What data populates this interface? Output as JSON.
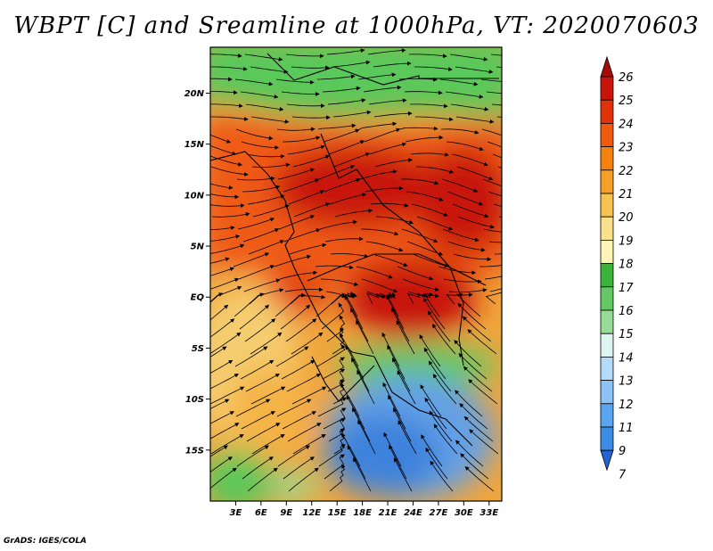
{
  "title": "WBPT [C] and Sreamline at 1000hPa, VT: 2020070603",
  "credit": "GrADS: IGES/COLA",
  "map": {
    "lon_range": [
      0,
      34.5
    ],
    "lat_range": [
      -20,
      24.5
    ],
    "lat_ticks": [
      {
        "value": 20,
        "label": "20N"
      },
      {
        "value": 15,
        "label": "15N"
      },
      {
        "value": 10,
        "label": "10N"
      },
      {
        "value": 5,
        "label": "5N"
      },
      {
        "value": 0,
        "label": "EQ"
      },
      {
        "value": -5,
        "label": "5S"
      },
      {
        "value": -10,
        "label": "10S"
      },
      {
        "value": -15,
        "label": "15S"
      }
    ],
    "lon_ticks": [
      {
        "value": 3,
        "label": "3E"
      },
      {
        "value": 6,
        "label": "6E"
      },
      {
        "value": 9,
        "label": "9E"
      },
      {
        "value": 12,
        "label": "12E"
      },
      {
        "value": 15,
        "label": "15E"
      },
      {
        "value": 18,
        "label": "18E"
      },
      {
        "value": 21,
        "label": "21E"
      },
      {
        "value": 24,
        "label": "24E"
      },
      {
        "value": 27,
        "label": "27E"
      },
      {
        "value": 30,
        "label": "30E"
      },
      {
        "value": 33,
        "label": "33E"
      }
    ]
  },
  "colorbar": {
    "levels": [
      "26",
      "25",
      "24",
      "23",
      "22",
      "21",
      "20",
      "19",
      "18",
      "17",
      "16",
      "15",
      "14",
      "13",
      "12",
      "11",
      "9",
      "7"
    ],
    "colors": [
      "#a50a0a",
      "#c8140a",
      "#e1320a",
      "#f05a0a",
      "#f5820f",
      "#f5a028",
      "#f5c350",
      "#fae18c",
      "#fff5b4",
      "#3cb43c",
      "#64c864",
      "#96dc96",
      "#dcf5f0",
      "#b4dcfa",
      "#8cc3f5",
      "#5aa5f0",
      "#3c8ce6",
      "#2364d2"
    ]
  }
}
